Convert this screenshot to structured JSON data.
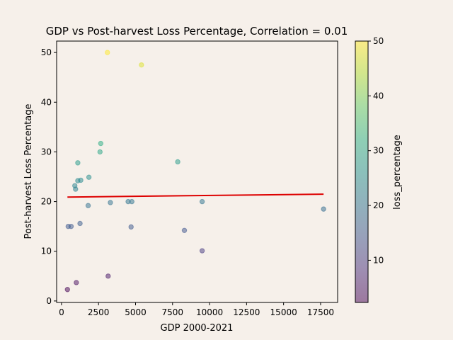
{
  "chart_data": {
    "type": "scatter",
    "title": "GDP vs Post-harvest Loss Percentage, Correlation = 0.01",
    "xlabel": "GDP 2000-2021",
    "ylabel": "Post-harvest Loss Percentage",
    "xlim": [
      -330,
      18650
    ],
    "ylim": [
      -0.3,
      52.3
    ],
    "xticks": [
      "0",
      "2500",
      "5000",
      "7500",
      "10000",
      "12500",
      "15000",
      "17500"
    ],
    "xtick_values": [
      0,
      2500,
      5000,
      7500,
      10000,
      12500,
      15000,
      17500
    ],
    "yticks": [
      "0",
      "10",
      "20",
      "30",
      "40",
      "50"
    ],
    "ytick_values": [
      0,
      10,
      20,
      30,
      40,
      50
    ],
    "grid": false,
    "colorbar": {
      "label": "loss_percentage",
      "min": 2.3,
      "max": 50,
      "ticks": [
        "10",
        "20",
        "30",
        "40",
        "50"
      ],
      "tick_values": [
        10,
        20,
        30,
        40,
        50
      ],
      "colormap": "viridis"
    },
    "points": [
      {
        "x": 400,
        "y": 2.3
      },
      {
        "x": 1000,
        "y": 3.7
      },
      {
        "x": 3150,
        "y": 5.0
      },
      {
        "x": 9500,
        "y": 10.1
      },
      {
        "x": 8300,
        "y": 14.2
      },
      {
        "x": 450,
        "y": 15.0
      },
      {
        "x": 650,
        "y": 15.0
      },
      {
        "x": 4700,
        "y": 14.9
      },
      {
        "x": 1250,
        "y": 15.6
      },
      {
        "x": 17700,
        "y": 18.5
      },
      {
        "x": 1800,
        "y": 19.2
      },
      {
        "x": 3300,
        "y": 19.8
      },
      {
        "x": 4500,
        "y": 20.0
      },
      {
        "x": 4750,
        "y": 20.0
      },
      {
        "x": 9500,
        "y": 20.0
      },
      {
        "x": 950,
        "y": 22.5
      },
      {
        "x": 900,
        "y": 23.2
      },
      {
        "x": 1100,
        "y": 24.2
      },
      {
        "x": 1300,
        "y": 24.3
      },
      {
        "x": 1850,
        "y": 24.9
      },
      {
        "x": 1100,
        "y": 27.8
      },
      {
        "x": 7850,
        "y": 28.0
      },
      {
        "x": 2600,
        "y": 30.0
      },
      {
        "x": 2650,
        "y": 31.7
      },
      {
        "x": 5400,
        "y": 47.5
      },
      {
        "x": 3100,
        "y": 50.0
      }
    ],
    "trendline": {
      "color": "#dd0000",
      "x": [
        400,
        17700
      ],
      "y": [
        20.9,
        21.5
      ]
    }
  }
}
